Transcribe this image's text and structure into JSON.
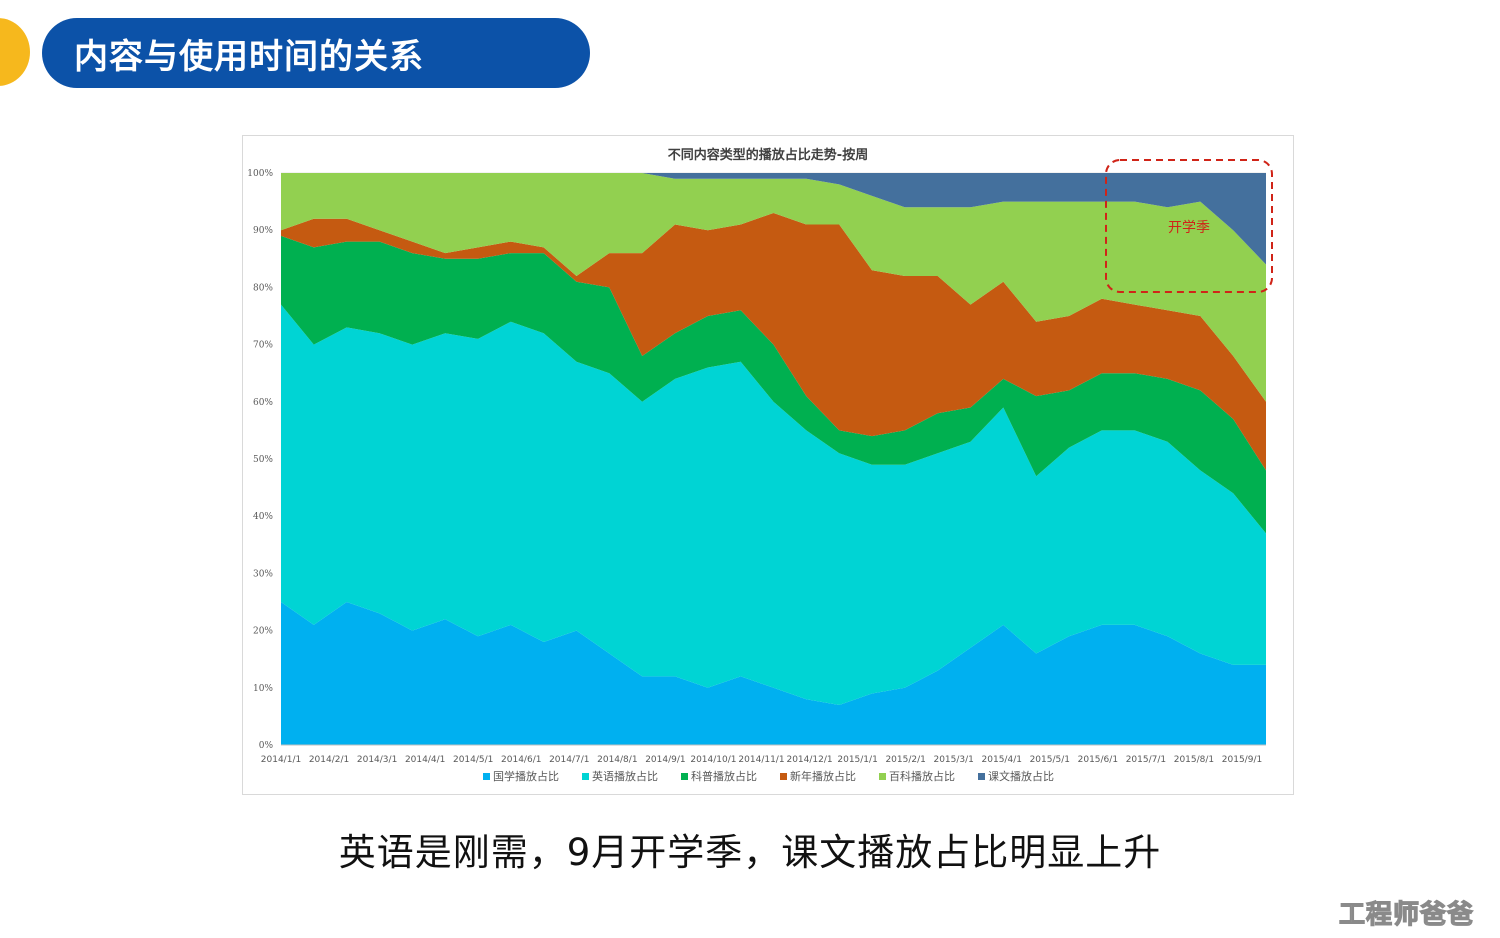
{
  "header": {
    "title": "内容与使用时间的关系"
  },
  "caption": "英语是刚需，9月开学季，课文播放占比明显上升",
  "watermark": "工程师爸爸",
  "colors": {
    "accent_dot": "#f6b81d",
    "title_bg": "#0c52a8",
    "annotation_red": "#d02418"
  },
  "chart_data": {
    "type": "area",
    "stacked": true,
    "percent_stacked": true,
    "title": "不同内容类型的播放占比走势-按周",
    "y_ticks": [
      "0%",
      "10%",
      "20%",
      "30%",
      "40%",
      "50%",
      "60%",
      "70%",
      "80%",
      "90%",
      "100%"
    ],
    "ylim": [
      0,
      100
    ],
    "x_tick_labels": [
      "2014/1/1",
      "2014/2/1",
      "2014/3/1",
      "2014/4/1",
      "2014/5/1",
      "2014/6/1",
      "2014/7/1",
      "2014/8/1",
      "2014/9/1",
      "2014/10/1",
      "2014/11/1",
      "2014/12/1",
      "2015/1/1",
      "2015/2/1",
      "2015/3/1",
      "2015/4/1",
      "2015/5/1",
      "2015/6/1",
      "2015/7/1",
      "2015/8/1",
      "2015/9/1"
    ],
    "x_weeks": [
      "2014/1/1",
      "2014/1/22",
      "2014/2/12",
      "2014/3/5",
      "2014/3/26",
      "2014/4/16",
      "2014/5/7",
      "2014/5/28",
      "2014/6/18",
      "2014/7/9",
      "2014/7/30",
      "2014/8/20",
      "2014/9/10",
      "2014/10/1",
      "2014/10/22",
      "2014/11/12",
      "2014/12/3",
      "2014/12/24",
      "2015/1/14",
      "2015/2/4",
      "2015/2/25",
      "2015/3/18",
      "2015/4/8",
      "2015/4/29",
      "2015/5/20",
      "2015/6/10",
      "2015/7/1",
      "2015/7/22",
      "2015/8/12",
      "2015/9/2",
      "2015/9/23"
    ],
    "legend_position": "bottom",
    "series": [
      {
        "name": "国学播放占比",
        "color": "#00b0f0",
        "values": [
          25,
          21,
          25,
          23,
          20,
          22,
          19,
          21,
          18,
          20,
          16,
          12,
          12,
          10,
          12,
          10,
          8,
          7,
          9,
          10,
          13,
          17,
          21,
          16,
          19,
          21,
          21,
          19,
          16,
          14,
          14
        ]
      },
      {
        "name": "英语播放占比",
        "color": "#00d4d4",
        "values": [
          52,
          49,
          48,
          49,
          50,
          50,
          52,
          53,
          54,
          47,
          49,
          48,
          52,
          56,
          55,
          50,
          47,
          44,
          40,
          39,
          38,
          36,
          38,
          31,
          33,
          34,
          34,
          34,
          32,
          30,
          23
        ]
      },
      {
        "name": "科普播放占比",
        "color": "#00b050",
        "values": [
          12,
          17,
          15,
          16,
          16,
          13,
          14,
          12,
          14,
          14,
          15,
          8,
          8,
          9,
          9,
          10,
          6,
          4,
          5,
          6,
          7,
          6,
          5,
          14,
          10,
          10,
          10,
          11,
          14,
          13,
          11
        ]
      },
      {
        "name": "新年播放占比",
        "color": "#c55a11",
        "values": [
          1,
          5,
          4,
          2,
          2,
          1,
          2,
          2,
          1,
          1,
          6,
          18,
          19,
          15,
          15,
          23,
          30,
          36,
          29,
          27,
          24,
          18,
          17,
          13,
          13,
          13,
          12,
          12,
          13,
          11,
          12
        ]
      },
      {
        "name": "百科播放占比",
        "color": "#92d050",
        "values": [
          10,
          8,
          8,
          10,
          12,
          14,
          13,
          12,
          13,
          18,
          14,
          14,
          8,
          9,
          8,
          6,
          8,
          7,
          13,
          12,
          12,
          17,
          14,
          21,
          20,
          17,
          18,
          18,
          20,
          22,
          24
        ]
      },
      {
        "name": "课文播放占比",
        "color": "#44709d",
        "values": [
          0,
          0,
          0,
          0,
          0,
          0,
          0,
          0,
          0,
          0,
          0,
          0,
          1,
          1,
          1,
          1,
          1,
          2,
          4,
          6,
          6,
          6,
          5,
          5,
          5,
          5,
          5,
          6,
          5,
          10,
          16
        ]
      }
    ],
    "annotation": {
      "text": "开学季",
      "style": "dashed-rounded-rect",
      "color": "#d02418"
    }
  }
}
